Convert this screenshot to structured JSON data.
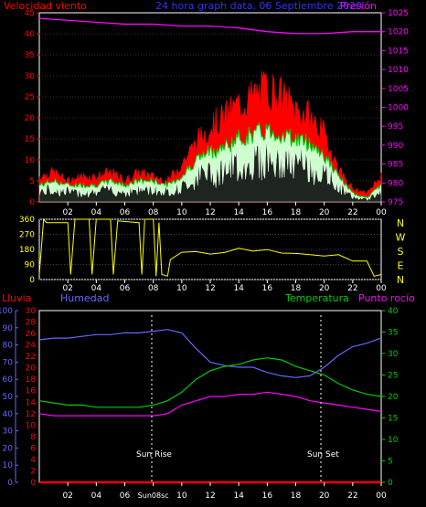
{
  "header": {
    "left_label": "Velocidad viento",
    "title": "24 hora graph data, 06 Septiembre 2020",
    "right_label": "Presión"
  },
  "mid": {
    "directions": [
      "N",
      "W",
      "S",
      "E",
      "N"
    ]
  },
  "bottom_header": {
    "rain": "Lluvia",
    "humidity": "Humedad",
    "temperature": "Temperatura",
    "dew": "Punto rocío"
  },
  "markers": {
    "sunrise": "Sun Rise",
    "sunset": "Sun Set",
    "sunrise_tick": "Sun08sc"
  },
  "chart_data": [
    {
      "type": "line",
      "title": "24 hora graph data, 06 Septiembre 2020",
      "x_ticks": [
        "02",
        "04",
        "06",
        "08",
        "10",
        "12",
        "14",
        "16",
        "18",
        "20",
        "22",
        "00"
      ],
      "ylim_left": [
        0,
        45
      ],
      "ylim_right": [
        975,
        1025
      ],
      "left_ticks": [
        0,
        5,
        10,
        15,
        20,
        25,
        30,
        35,
        40,
        45
      ],
      "right_ticks": [
        975,
        980,
        985,
        990,
        995,
        1000,
        1005,
        1010,
        1015,
        1020,
        1025
      ],
      "series": [
        {
          "name": "Velocidad viento",
          "color": "#ff0000",
          "x": [
            0,
            1,
            2,
            3,
            4,
            5,
            6,
            7,
            8,
            9,
            10,
            11,
            12,
            13,
            14,
            15,
            16,
            17,
            18,
            19,
            20,
            21,
            22,
            23,
            24
          ],
          "values": [
            6,
            7,
            5,
            6,
            6,
            7,
            5,
            7,
            6,
            5,
            9,
            14,
            18,
            20,
            23,
            25,
            27,
            25,
            22,
            20,
            16,
            8,
            3,
            2,
            6
          ]
        },
        {
          "name": "Velocidad media",
          "color": "#00cc00",
          "x": [
            0,
            1,
            2,
            3,
            4,
            5,
            6,
            7,
            8,
            9,
            10,
            11,
            12,
            13,
            14,
            15,
            16,
            17,
            18,
            19,
            20,
            21,
            22,
            23,
            24
          ],
          "values": [
            4,
            5,
            4,
            4,
            4,
            5,
            4,
            5,
            5,
            4,
            6,
            10,
            12,
            13,
            15,
            16,
            17,
            16,
            15,
            14,
            11,
            6,
            2,
            1,
            4
          ]
        },
        {
          "name": "Presión",
          "color": "#ff00ff",
          "axis": "right",
          "x": [
            0,
            2,
            4,
            6,
            8,
            10,
            12,
            14,
            16,
            18,
            20,
            22,
            24
          ],
          "values": [
            1023.5,
            1023,
            1022.5,
            1022,
            1022,
            1021.5,
            1021.5,
            1021,
            1020,
            1019.5,
            1019.5,
            1020,
            1020
          ]
        }
      ]
    },
    {
      "type": "line",
      "title": "",
      "x_ticks": [
        "02",
        "04",
        "06",
        "08",
        "10",
        "12",
        "14",
        "16",
        "18",
        "20",
        "22",
        "00"
      ],
      "ylim": [
        0,
        360
      ],
      "y_ticks": [
        0,
        90,
        180,
        270,
        360
      ],
      "series": [
        {
          "name": "",
          "color": "#ffff00",
          "x": [
            0,
            0.3,
            0.5,
            2,
            2.2,
            2.5,
            3.5,
            3.7,
            4,
            5,
            5.2,
            5.5,
            7,
            7.2,
            7.4,
            8,
            8.2,
            8.4,
            8.6,
            9,
            9.2,
            10,
            11,
            12,
            13,
            14,
            15,
            16,
            17,
            18,
            19,
            20,
            21,
            22,
            23,
            23.5,
            24
          ],
          "values": [
            30,
            360,
            340,
            340,
            30,
            360,
            360,
            30,
            360,
            360,
            30,
            350,
            340,
            30,
            360,
            360,
            20,
            340,
            30,
            20,
            120,
            170,
            165,
            160,
            170,
            180,
            175,
            170,
            165,
            160,
            155,
            150,
            145,
            110,
            110,
            20,
            30
          ]
        }
      ]
    },
    {
      "type": "line",
      "title": "",
      "x_ticks": [
        "02",
        "04",
        "06",
        "08",
        "10",
        "12",
        "14",
        "16",
        "18",
        "20",
        "22",
        "00"
      ],
      "ylim_left": [
        0,
        100
      ],
      "left_ticks": [
        0,
        10,
        20,
        30,
        40,
        50,
        60,
        70,
        80,
        90,
        100
      ],
      "ylim_mid": [
        0,
        30
      ],
      "mid_ticks": [
        0,
        2,
        4,
        6,
        8,
        10,
        12,
        14,
        16,
        18,
        20,
        22,
        24,
        26,
        28,
        30
      ],
      "ylim_right": [
        0,
        40
      ],
      "right_ticks": [
        0,
        5,
        10,
        15,
        20,
        25,
        30,
        35,
        40
      ],
      "series": [
        {
          "name": "Lluvia",
          "color": "#ff0000",
          "axis": "mid",
          "x": [
            0,
            24
          ],
          "values": [
            0,
            0
          ]
        },
        {
          "name": "Humedad",
          "color": "#6666ff",
          "axis": "left",
          "x": [
            0,
            1,
            2,
            3,
            4,
            5,
            6,
            7,
            8,
            9,
            10,
            11,
            12,
            13,
            14,
            15,
            16,
            17,
            18,
            19,
            20,
            21,
            22,
            23,
            24
          ],
          "values": [
            83,
            84,
            84,
            85,
            86,
            86,
            87,
            87,
            88,
            89,
            87,
            78,
            70,
            68,
            67,
            67,
            64,
            62,
            61,
            62,
            67,
            74,
            79,
            81,
            84
          ]
        },
        {
          "name": "Temperatura",
          "color": "#00cc00",
          "axis": "right",
          "x": [
            0,
            1,
            2,
            3,
            4,
            5,
            6,
            7,
            8,
            9,
            10,
            11,
            12,
            13,
            14,
            15,
            16,
            17,
            18,
            19,
            20,
            21,
            22,
            23,
            24
          ],
          "values": [
            19,
            18.5,
            18,
            18,
            17.5,
            17.5,
            17.5,
            17.5,
            18,
            19,
            21,
            24,
            26,
            27,
            27.5,
            28.5,
            29,
            28.5,
            27,
            26,
            25,
            23,
            21.5,
            20.5,
            20
          ]
        },
        {
          "name": "Punto rocío",
          "color": "#ff00ff",
          "axis": "right",
          "x": [
            0,
            1,
            2,
            3,
            4,
            5,
            6,
            7,
            8,
            9,
            10,
            11,
            12,
            13,
            14,
            15,
            16,
            17,
            18,
            19,
            20,
            21,
            22,
            23,
            24
          ],
          "values": [
            16,
            15.5,
            15.5,
            15.5,
            15.5,
            15.5,
            15.5,
            15.5,
            15.5,
            16,
            18,
            19,
            20,
            20,
            20.5,
            20.5,
            21,
            20.5,
            20,
            19,
            18.5,
            18,
            17.5,
            17,
            16.5
          ]
        }
      ]
    }
  ]
}
